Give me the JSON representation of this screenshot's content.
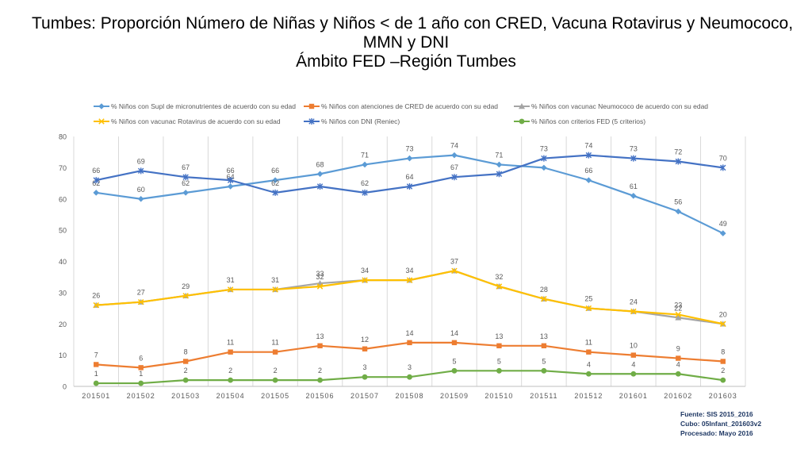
{
  "title": {
    "line1": "Tumbes: Proporción Número de Niñas y Niños < de 1 año con CRED, Vacuna Rotavirus y Neumococo,",
    "line2": "MMN y DNI",
    "line3": "Ámbito FED –Región Tumbes"
  },
  "source": {
    "line1": "Fuente: SIS 2015_2016",
    "line2": "Cubo: 05Infant_201603v2",
    "line3": "Procesado: Mayo 2016"
  },
  "chart_data": {
    "type": "line",
    "categories": [
      "201501",
      "201502",
      "201503",
      "201504",
      "201505",
      "201506",
      "201507",
      "201508",
      "201509",
      "201510",
      "201511",
      "201512",
      "201601",
      "201602",
      "201603"
    ],
    "ylim": [
      0,
      80
    ],
    "yticks": [
      "0",
      "10",
      "20",
      "30",
      "40",
      "50",
      "60",
      "70",
      "80"
    ],
    "grid": "vertical",
    "legend_position": "top",
    "series": [
      {
        "name": "% Niños con Supl de micronutrientes de acuerdo con su edad",
        "color": "#5b9bd5",
        "marker": "diamond",
        "values": [
          62,
          60,
          62,
          64,
          66,
          68,
          71,
          73,
          74,
          71,
          70,
          66,
          61,
          56,
          49
        ],
        "labels": [
          "62",
          "60",
          "62",
          "64",
          "66",
          "68",
          "71",
          "73",
          "74",
          "71",
          "",
          "66",
          "61",
          "56",
          "49"
        ]
      },
      {
        "name": "% Niños  con atenciones de CRED de acuerdo con su edad",
        "color": "#ed7d31",
        "marker": "square",
        "values": [
          7,
          6,
          8,
          11,
          11,
          13,
          12,
          14,
          14,
          13,
          13,
          11,
          10,
          9,
          8
        ],
        "labels": [
          "7",
          "6",
          "8",
          "11",
          "11",
          "13",
          "12",
          "14",
          "14",
          "13",
          "13",
          "11",
          "10",
          "9",
          "8"
        ]
      },
      {
        "name": "% Niños con vacunac Neumococo de acuerdo con su edad",
        "color": "#a5a5a5",
        "marker": "triangle",
        "values": [
          26,
          27,
          29,
          31,
          31,
          33,
          34,
          34,
          37,
          32,
          28,
          25,
          24,
          22,
          20
        ],
        "labels": [
          "",
          "",
          "",
          "",
          "",
          "33",
          "",
          "",
          "",
          "",
          "",
          "",
          "",
          "22",
          ""
        ]
      },
      {
        "name": "% Niños con vacunac Rotavirus de acuerdo con su edad",
        "color": "#ffc000",
        "marker": "x",
        "values": [
          26,
          27,
          29,
          31,
          31,
          32,
          34,
          34,
          37,
          32,
          28,
          25,
          24,
          23,
          20
        ],
        "labels": [
          "26",
          "27",
          "29",
          "31",
          "31",
          "32",
          "34",
          "34",
          "37",
          "32",
          "28",
          "25",
          "24",
          "23",
          "20"
        ]
      },
      {
        "name": "% Niños con DNI (Reniec)",
        "color": "#4472c4",
        "marker": "star",
        "values": [
          66,
          69,
          67,
          66,
          62,
          64,
          62,
          64,
          67,
          68,
          73,
          74,
          73,
          72,
          70
        ],
        "labels": [
          "66",
          "69",
          "67",
          "66",
          "62",
          "",
          "62",
          "64",
          "67",
          "",
          "73",
          "74",
          "73",
          "72",
          "70"
        ]
      },
      {
        "name": "% Niños con criterios FED (5 criterios)",
        "color": "#70ad47",
        "marker": "circle",
        "values": [
          1,
          1,
          2,
          2,
          2,
          2,
          3,
          3,
          5,
          5,
          5,
          4,
          4,
          4,
          2
        ],
        "labels": [
          "1",
          "1",
          "2",
          "2",
          "2",
          "2",
          "3",
          "3",
          "5",
          "5",
          "5",
          "4",
          "4",
          "4",
          "2"
        ]
      }
    ]
  }
}
